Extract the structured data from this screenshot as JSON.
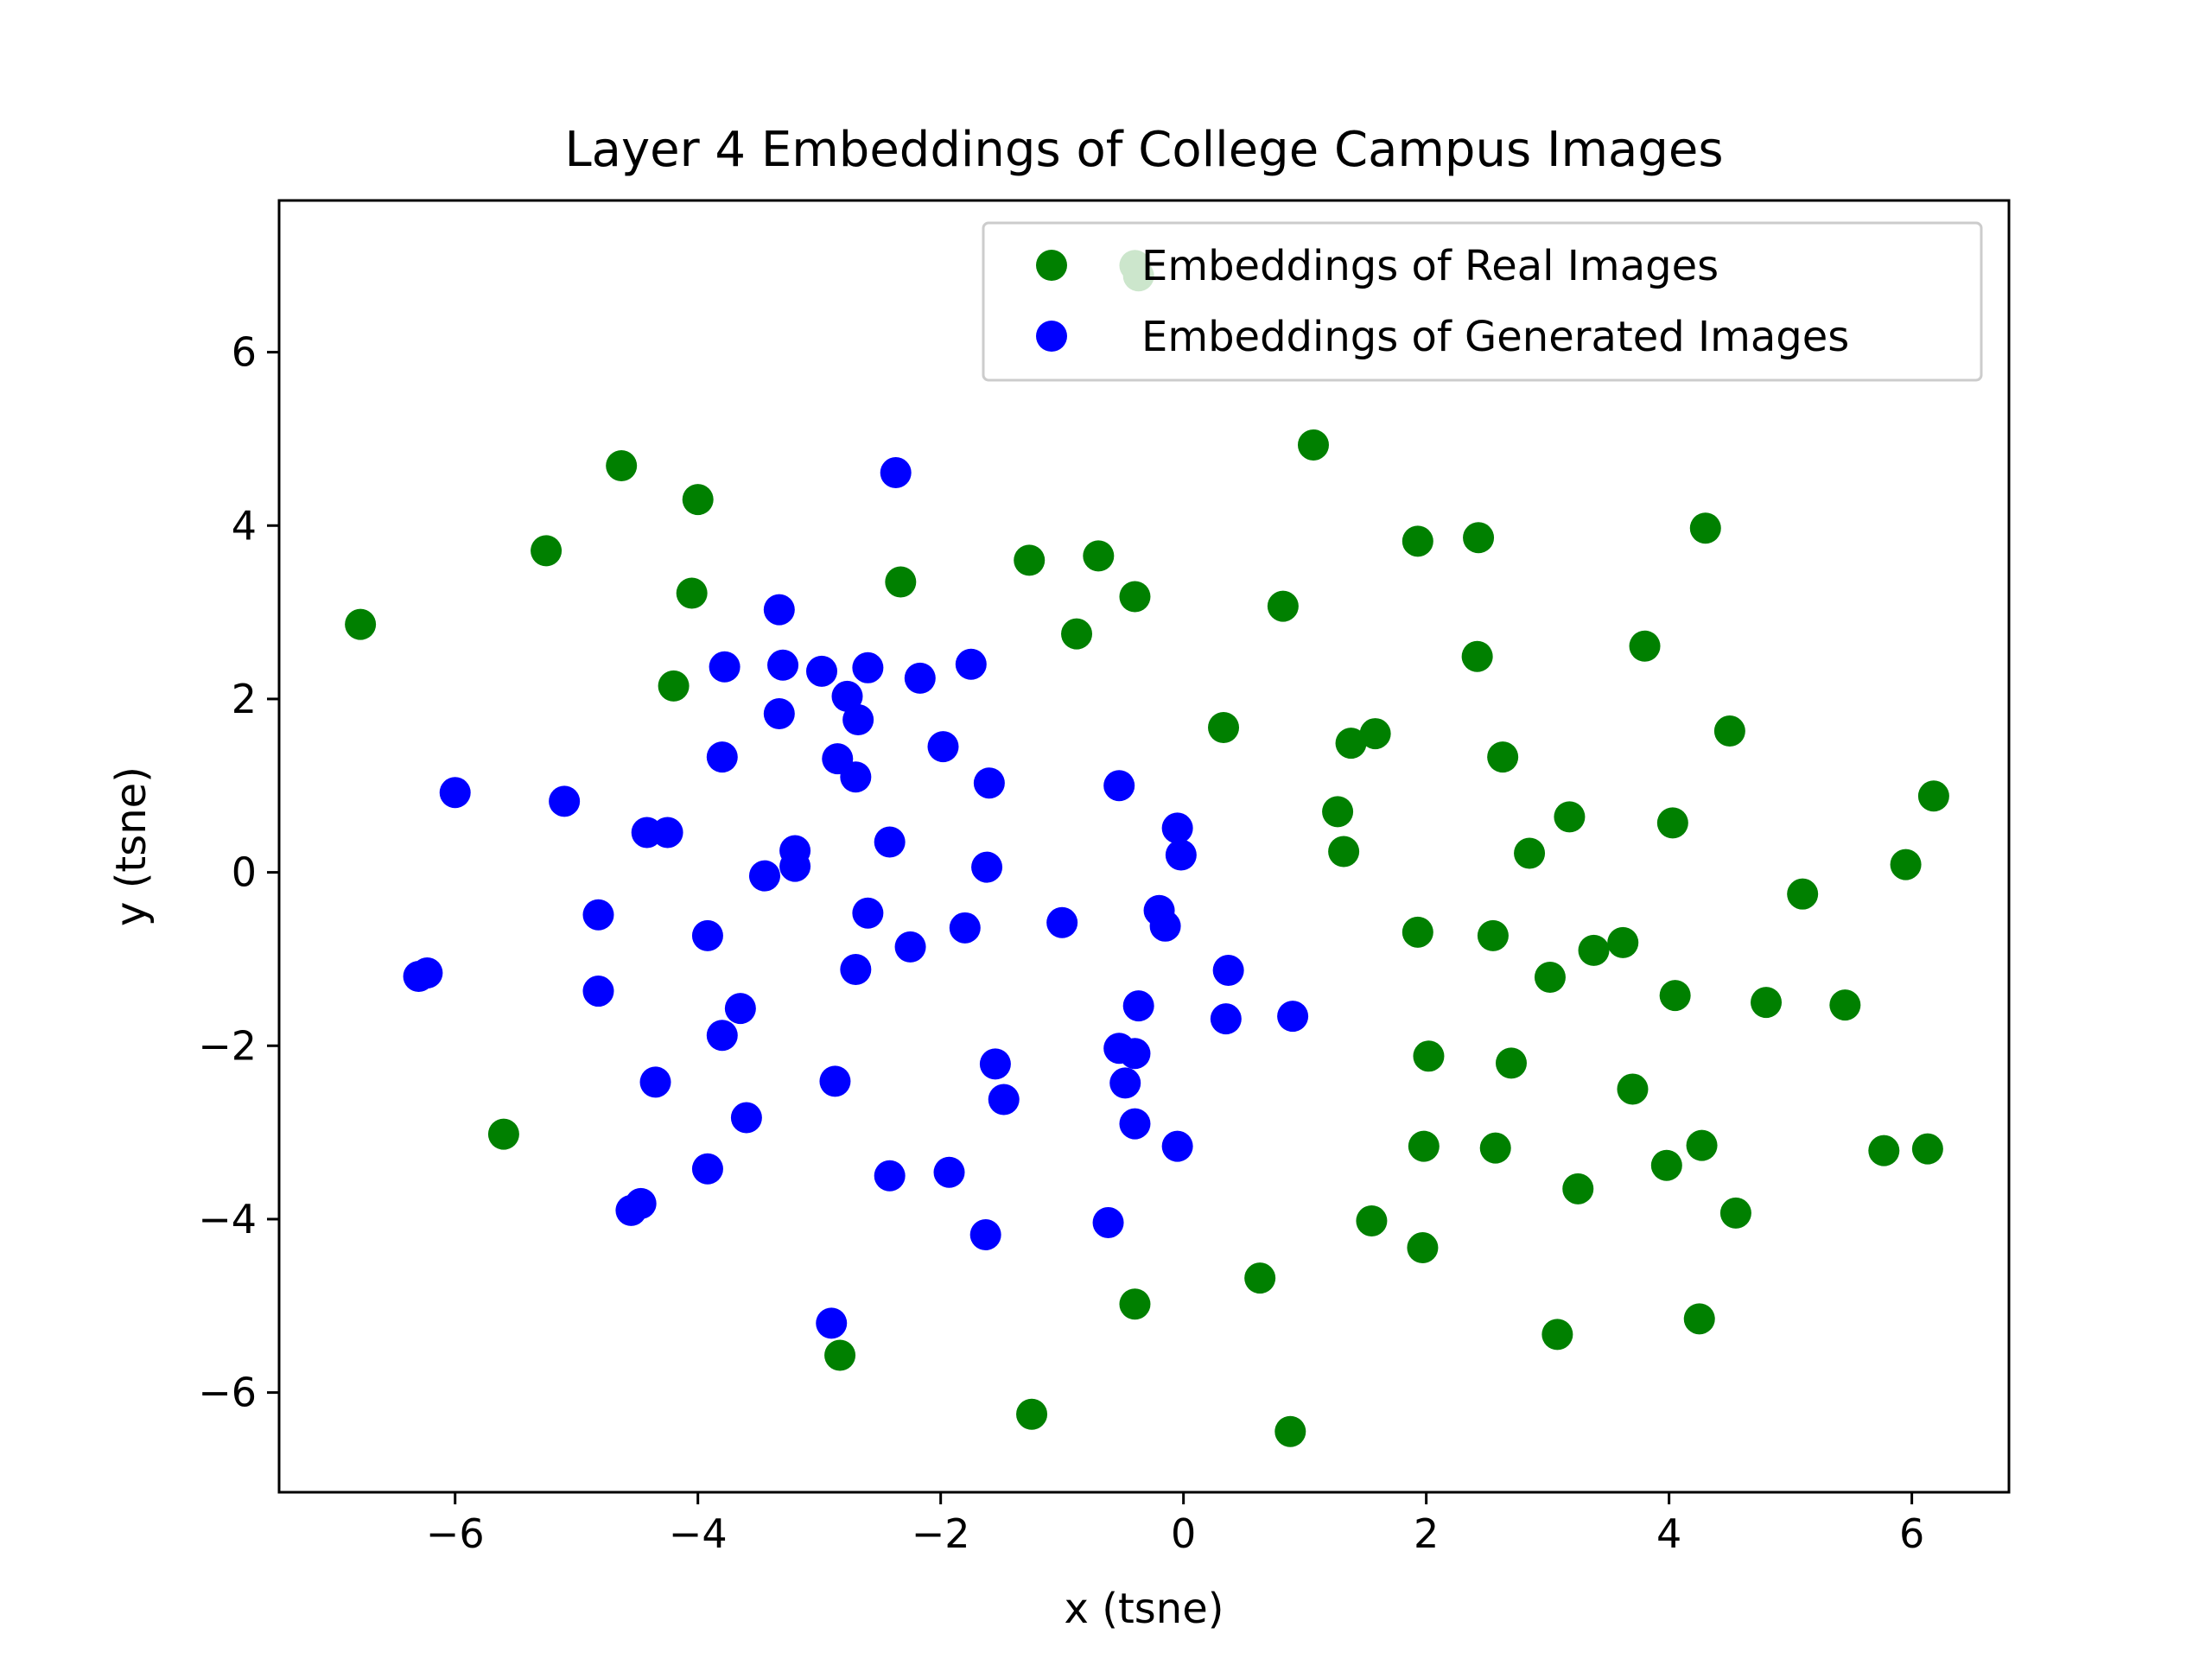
{
  "chart_data": {
    "type": "scatter",
    "title": "Layer 4 Embeddings of College Campus Images",
    "xlabel": "x (tsne)",
    "ylabel": "y (tsne)",
    "xlim": [
      -7.45,
      6.8
    ],
    "ylim": [
      -7.15,
      7.75
    ],
    "xticks": [
      -6,
      -4,
      -2,
      0,
      2,
      4,
      6
    ],
    "yticks": [
      -6,
      -4,
      -2,
      0,
      2,
      4,
      6
    ],
    "xtick_labels": [
      "−6",
      "−4",
      "−2",
      "0",
      "2",
      "4",
      "6"
    ],
    "ytick_labels": [
      "−6",
      "−4",
      "−2",
      "0",
      "2",
      "4",
      "6"
    ],
    "grid": false,
    "legend_position": "top-right",
    "series": [
      {
        "name": "Embeddings of Real Images",
        "color": "#008000",
        "points": [
          [
            -6.78,
            2.86
          ],
          [
            -5.25,
            3.71
          ],
          [
            -4.63,
            4.69
          ],
          [
            -4.0,
            4.3
          ],
          [
            -4.05,
            3.22
          ],
          [
            -4.2,
            2.15
          ],
          [
            -5.6,
            -3.02
          ],
          [
            -2.33,
            3.35
          ],
          [
            -1.27,
            3.6
          ],
          [
            -0.7,
            3.65
          ],
          [
            -0.4,
            3.18
          ],
          [
            -0.88,
            2.75
          ],
          [
            -0.4,
            7.0
          ],
          [
            -0.37,
            6.88
          ],
          [
            1.07,
            4.93
          ],
          [
            0.82,
            3.07
          ],
          [
            1.93,
            3.82
          ],
          [
            2.43,
            3.86
          ],
          [
            4.3,
            3.97
          ],
          [
            2.42,
            2.49
          ],
          [
            3.8,
            2.61
          ],
          [
            0.33,
            1.67
          ],
          [
            1.38,
            1.49
          ],
          [
            1.58,
            1.6
          ],
          [
            2.63,
            1.33
          ],
          [
            4.5,
            1.63
          ],
          [
            1.27,
            0.7
          ],
          [
            1.32,
            0.24
          ],
          [
            2.85,
            0.22
          ],
          [
            3.18,
            0.64
          ],
          [
            4.03,
            0.57
          ],
          [
            6.18,
            0.88
          ],
          [
            5.95,
            0.09
          ],
          [
            5.1,
            -0.25
          ],
          [
            1.93,
            -0.69
          ],
          [
            2.55,
            -0.73
          ],
          [
            3.38,
            -0.9
          ],
          [
            3.62,
            -0.81
          ],
          [
            3.02,
            -1.21
          ],
          [
            4.05,
            -1.42
          ],
          [
            4.8,
            -1.5
          ],
          [
            5.45,
            -1.53
          ],
          [
            2.02,
            -2.12
          ],
          [
            2.7,
            -2.2
          ],
          [
            3.7,
            -2.5
          ],
          [
            1.98,
            -3.16
          ],
          [
            2.57,
            -3.18
          ],
          [
            4.27,
            -3.15
          ],
          [
            5.77,
            -3.21
          ],
          [
            6.13,
            -3.19
          ],
          [
            3.25,
            -3.65
          ],
          [
            3.98,
            -3.38
          ],
          [
            1.55,
            -4.02
          ],
          [
            1.97,
            -4.33
          ],
          [
            4.55,
            -3.93
          ],
          [
            0.63,
            -4.68
          ],
          [
            -0.4,
            -4.98
          ],
          [
            3.08,
            -5.33
          ],
          [
            4.25,
            -5.15
          ],
          [
            -2.83,
            -5.57
          ],
          [
            -1.25,
            -6.25
          ],
          [
            0.88,
            -6.45
          ]
        ]
      },
      {
        "name": "Embeddings of Generated Images",
        "color": "#0000ff",
        "points": [
          [
            -2.37,
            4.61
          ],
          [
            -3.33,
            3.03
          ],
          [
            -3.78,
            2.37
          ],
          [
            -3.3,
            2.39
          ],
          [
            -2.98,
            2.32
          ],
          [
            -2.6,
            2.36
          ],
          [
            -2.17,
            2.24
          ],
          [
            -1.75,
            2.4
          ],
          [
            -2.77,
            2.03
          ],
          [
            -2.68,
            1.76
          ],
          [
            -3.33,
            1.83
          ],
          [
            -1.98,
            1.45
          ],
          [
            -3.8,
            1.33
          ],
          [
            -2.85,
            1.31
          ],
          [
            -2.7,
            1.1
          ],
          [
            -1.6,
            1.03
          ],
          [
            -0.53,
            1.0
          ],
          [
            -6.0,
            0.92
          ],
          [
            -5.1,
            0.82
          ],
          [
            -4.42,
            0.46
          ],
          [
            -4.25,
            0.46
          ],
          [
            -2.42,
            0.35
          ],
          [
            -3.2,
            0.25
          ],
          [
            -3.2,
            0.07
          ],
          [
            -3.45,
            -0.04
          ],
          [
            -1.62,
            0.06
          ],
          [
            -0.05,
            0.51
          ],
          [
            -0.02,
            0.2
          ],
          [
            -4.82,
            -0.49
          ],
          [
            -2.6,
            -0.47
          ],
          [
            -3.92,
            -0.73
          ],
          [
            -2.25,
            -0.86
          ],
          [
            -1.8,
            -0.64
          ],
          [
            -1.0,
            -0.58
          ],
          [
            -0.2,
            -0.44
          ],
          [
            -0.15,
            -0.62
          ],
          [
            -6.3,
            -1.2
          ],
          [
            -6.23,
            -1.16
          ],
          [
            -4.82,
            -1.37
          ],
          [
            -2.7,
            -1.12
          ],
          [
            -3.65,
            -1.57
          ],
          [
            -3.8,
            -1.88
          ],
          [
            0.37,
            -1.13
          ],
          [
            0.35,
            -1.69
          ],
          [
            0.9,
            -1.66
          ],
          [
            -0.37,
            -1.54
          ],
          [
            -0.53,
            -2.03
          ],
          [
            -0.4,
            -2.09
          ],
          [
            -1.55,
            -2.21
          ],
          [
            -0.48,
            -2.43
          ],
          [
            -1.48,
            -2.62
          ],
          [
            -4.35,
            -2.42
          ],
          [
            -2.87,
            -2.41
          ],
          [
            -3.6,
            -2.83
          ],
          [
            -0.4,
            -2.9
          ],
          [
            -0.05,
            -3.16
          ],
          [
            -3.92,
            -3.42
          ],
          [
            -2.42,
            -3.5
          ],
          [
            -1.93,
            -3.46
          ],
          [
            -4.55,
            -3.9
          ],
          [
            -4.47,
            -3.82
          ],
          [
            -0.62,
            -4.04
          ],
          [
            -1.63,
            -4.18
          ],
          [
            -2.9,
            -5.2
          ]
        ]
      }
    ]
  }
}
